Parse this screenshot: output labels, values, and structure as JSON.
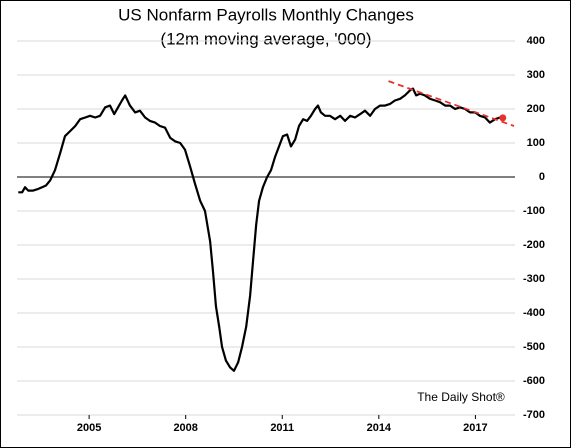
{
  "chart_data": {
    "type": "line",
    "title": "US Nonfarm Payrolls Monthly Changes",
    "subtitle": "(12m moving average, '000)",
    "annotation": "The Daily Shot®",
    "color": "#000000",
    "x": [
      2002.8,
      2002.92,
      2003.01,
      2003.11,
      2003.26,
      2003.42,
      2003.54,
      2003.66,
      2003.79,
      2003.94,
      2004.1,
      2004.25,
      2004.41,
      2004.57,
      2004.72,
      2004.88,
      2005.03,
      2005.19,
      2005.34,
      2005.5,
      2005.65,
      2005.78,
      2005.9,
      2006.02,
      2006.12,
      2006.27,
      2006.43,
      2006.58,
      2006.74,
      2006.89,
      2007.05,
      2007.2,
      2007.36,
      2007.52,
      2007.67,
      2007.83,
      2007.98,
      2008.14,
      2008.29,
      2008.45,
      2008.6,
      2008.76,
      2008.85,
      2008.94,
      2009.04,
      2009.13,
      2009.25,
      2009.38,
      2009.5,
      2009.63,
      2009.75,
      2009.88,
      2010.0,
      2010.09,
      2010.19,
      2010.28,
      2010.4,
      2010.53,
      2010.65,
      2010.78,
      2010.9,
      2011.02,
      2011.15,
      2011.27,
      2011.4,
      2011.52,
      2011.65,
      2011.77,
      2011.89,
      2012.02,
      2012.11,
      2012.2,
      2012.33,
      2012.48,
      2012.64,
      2012.8,
      2012.95,
      2013.11,
      2013.26,
      2013.42,
      2013.57,
      2013.73,
      2013.88,
      2014.04,
      2014.19,
      2014.35,
      2014.5,
      2014.66,
      2014.81,
      2014.97,
      2015.06,
      2015.16,
      2015.28,
      2015.43,
      2015.59,
      2015.75,
      2015.9,
      2016.06,
      2016.21,
      2016.37,
      2016.52,
      2016.68,
      2016.83,
      2016.99,
      2017.14,
      2017.3,
      2017.45,
      2017.61,
      2017.76
    ],
    "values": [
      -45,
      -45,
      -30,
      -40,
      -40,
      -35,
      -30,
      -25,
      -10,
      20,
      70,
      120,
      135,
      150,
      170,
      175,
      180,
      175,
      180,
      205,
      210,
      185,
      205,
      225,
      240,
      210,
      190,
      195,
      175,
      165,
      160,
      150,
      145,
      115,
      105,
      100,
      80,
      30,
      -20,
      -70,
      -100,
      -190,
      -280,
      -380,
      -440,
      -500,
      -540,
      -560,
      -570,
      -545,
      -500,
      -440,
      -350,
      -250,
      -140,
      -70,
      -30,
      0,
      20,
      60,
      90,
      120,
      125,
      90,
      110,
      150,
      170,
      165,
      180,
      200,
      210,
      190,
      180,
      180,
      170,
      180,
      165,
      180,
      175,
      185,
      195,
      180,
      200,
      210,
      210,
      215,
      225,
      230,
      240,
      255,
      260,
      240,
      245,
      240,
      230,
      225,
      220,
      210,
      210,
      200,
      205,
      200,
      190,
      190,
      180,
      175,
      160,
      170,
      175
    ],
    "trend": {
      "color": "#e8312f",
      "x": [
        2014.3,
        2018.2
      ],
      "values": [
        282,
        150
      ]
    },
    "marker": {
      "color": "#e8312f",
      "x": 2017.85,
      "value": 174
    },
    "xlim": [
      2002.76,
      2018.23
    ],
    "xticks": [
      2005,
      2008,
      2011,
      2014,
      2017
    ],
    "ylim": [
      -700,
      400
    ],
    "yticks": [
      -700,
      -600,
      -500,
      -400,
      -300,
      -200,
      -100,
      0,
      100,
      200,
      300,
      400
    ],
    "grid": true
  }
}
